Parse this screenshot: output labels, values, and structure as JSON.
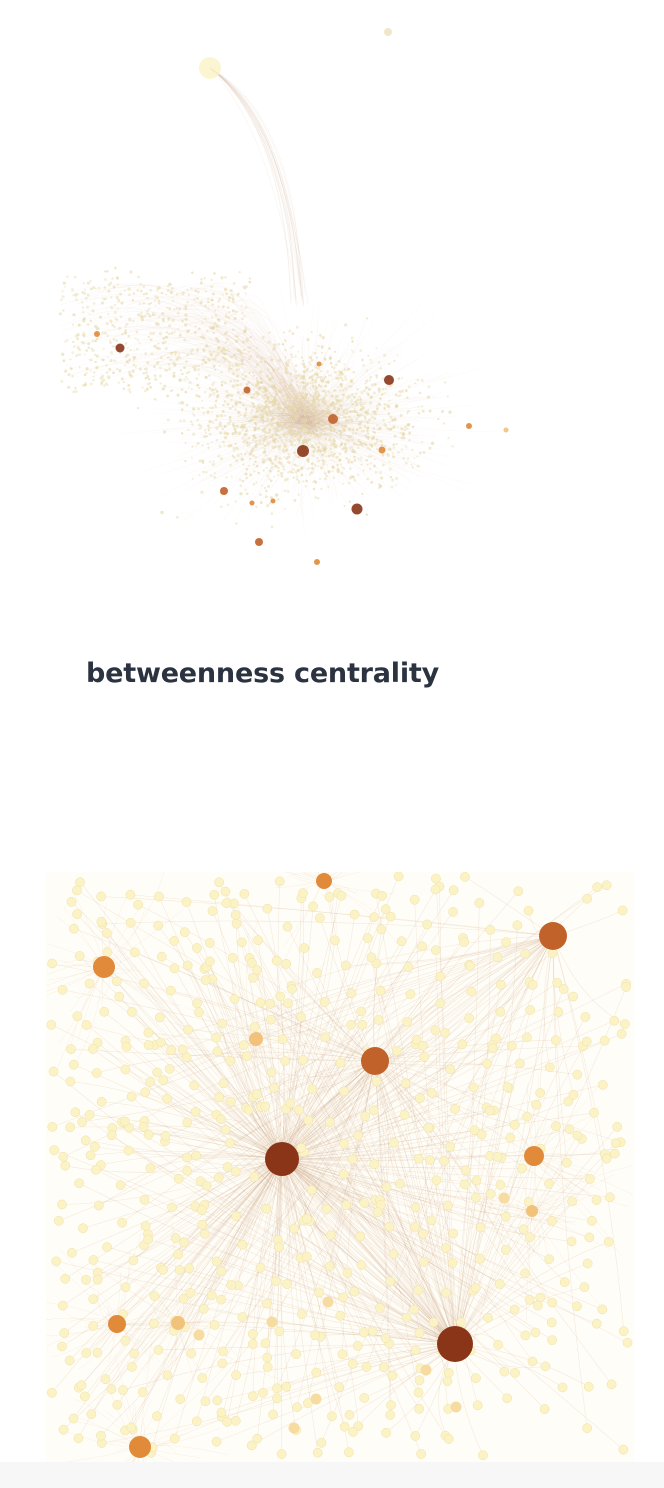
{
  "section": {
    "title": "betweenness centrality"
  },
  "colors": {
    "background": "#ffffff",
    "title_text": "#2b3240",
    "node_light": "#fbf3c6",
    "node_light_stroke": "#efe1a2",
    "node_mid": "#f2c27a",
    "node_orange": "#e08a3a",
    "node_brown": "#c0622a",
    "node_dark": "#8a3517",
    "edge": "#c9a07a"
  },
  "figures": {
    "top": {
      "kind": "network-overview",
      "highlighted_node_count": 16
    },
    "bottom": {
      "kind": "network-zoomed",
      "hub_count": 4,
      "highlighted_node_count": 11
    }
  }
}
